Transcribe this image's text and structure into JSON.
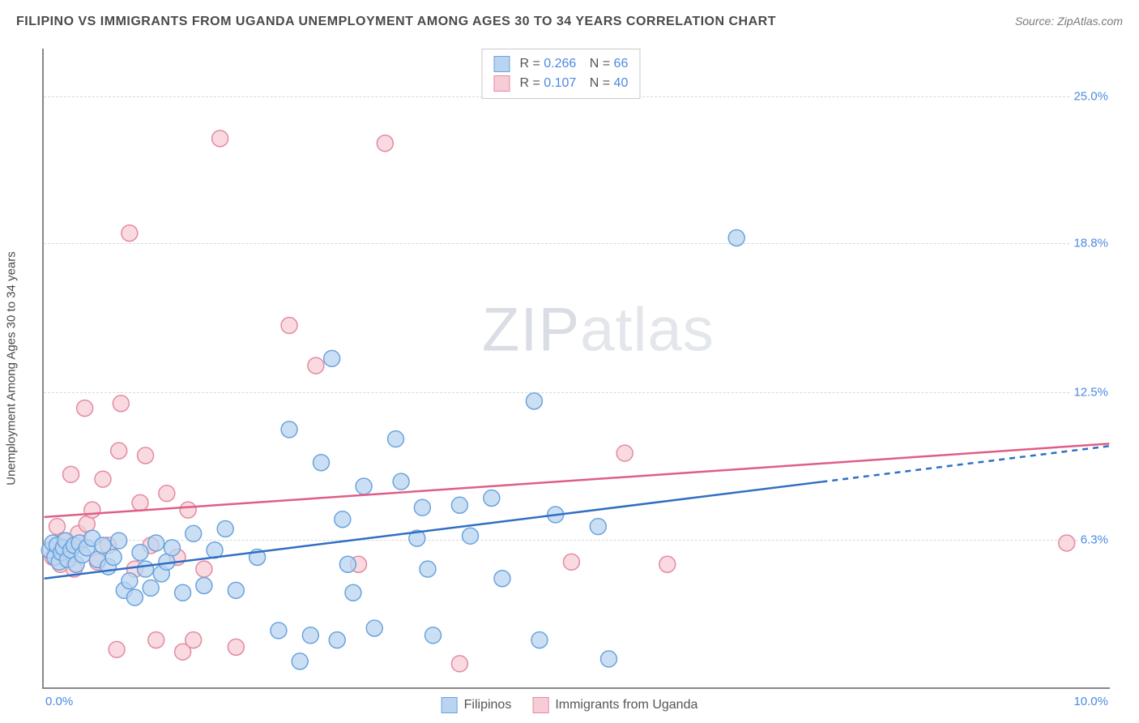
{
  "title": "FILIPINO VS IMMIGRANTS FROM UGANDA UNEMPLOYMENT AMONG AGES 30 TO 34 YEARS CORRELATION CHART",
  "source": "Source: ZipAtlas.com",
  "watermark_a": "ZIP",
  "watermark_b": "atlas",
  "chart": {
    "type": "scatter",
    "ylabel": "Unemployment Among Ages 30 to 34 years",
    "xlim": [
      0,
      10
    ],
    "ylim": [
      0,
      27
    ],
    "y_ticks": [
      6.3,
      12.5,
      18.8,
      25.0
    ],
    "y_tick_labels": [
      "6.3%",
      "12.5%",
      "18.8%",
      "25.0%"
    ],
    "x_tick_left": "0.0%",
    "x_tick_right": "10.0%",
    "grid_color": "#d8d8d8",
    "axis_color": "#888888",
    "background_color": "#ffffff",
    "series": [
      {
        "name": "Filipinos",
        "fill": "#b9d4f0",
        "stroke": "#6aa3de",
        "line_color": "#2f6fc4",
        "r_value": "0.266",
        "n_value": "66",
        "regression": {
          "x1": 0.0,
          "y1": 4.6,
          "x2": 7.3,
          "y2": 8.7,
          "x3": 10.0,
          "y3": 10.2,
          "dash_after": 7.3
        },
        "points": [
          [
            0.05,
            5.8
          ],
          [
            0.08,
            6.1
          ],
          [
            0.1,
            5.5
          ],
          [
            0.12,
            6.0
          ],
          [
            0.14,
            5.3
          ],
          [
            0.16,
            5.7
          ],
          [
            0.18,
            5.9
          ],
          [
            0.2,
            6.2
          ],
          [
            0.22,
            5.4
          ],
          [
            0.25,
            5.8
          ],
          [
            0.28,
            6.0
          ],
          [
            0.3,
            5.2
          ],
          [
            0.33,
            6.1
          ],
          [
            0.36,
            5.6
          ],
          [
            0.4,
            5.9
          ],
          [
            0.45,
            6.3
          ],
          [
            0.5,
            5.4
          ],
          [
            0.55,
            6.0
          ],
          [
            0.6,
            5.1
          ],
          [
            0.65,
            5.5
          ],
          [
            0.7,
            6.2
          ],
          [
            0.75,
            4.1
          ],
          [
            0.8,
            4.5
          ],
          [
            0.85,
            3.8
          ],
          [
            0.9,
            5.7
          ],
          [
            0.95,
            5.0
          ],
          [
            1.0,
            4.2
          ],
          [
            1.05,
            6.1
          ],
          [
            1.1,
            4.8
          ],
          [
            1.15,
            5.3
          ],
          [
            1.2,
            5.9
          ],
          [
            1.3,
            4.0
          ],
          [
            1.4,
            6.5
          ],
          [
            1.5,
            4.3
          ],
          [
            1.6,
            5.8
          ],
          [
            1.7,
            6.7
          ],
          [
            1.8,
            4.1
          ],
          [
            2.0,
            5.5
          ],
          [
            2.2,
            2.4
          ],
          [
            2.3,
            10.9
          ],
          [
            2.4,
            1.1
          ],
          [
            2.5,
            2.2
          ],
          [
            2.6,
            9.5
          ],
          [
            2.7,
            13.9
          ],
          [
            2.75,
            2.0
          ],
          [
            2.8,
            7.1
          ],
          [
            2.85,
            5.2
          ],
          [
            2.9,
            4.0
          ],
          [
            3.0,
            8.5
          ],
          [
            3.1,
            2.5
          ],
          [
            3.3,
            10.5
          ],
          [
            3.35,
            8.7
          ],
          [
            3.5,
            6.3
          ],
          [
            3.55,
            7.6
          ],
          [
            3.6,
            5.0
          ],
          [
            3.65,
            2.2
          ],
          [
            3.9,
            7.7
          ],
          [
            4.0,
            6.4
          ],
          [
            4.2,
            8.0
          ],
          [
            4.3,
            4.6
          ],
          [
            4.6,
            12.1
          ],
          [
            4.65,
            2.0
          ],
          [
            4.8,
            7.3
          ],
          [
            5.2,
            6.8
          ],
          [
            5.3,
            1.2
          ],
          [
            6.5,
            19.0
          ]
        ]
      },
      {
        "name": "Immigrants from Uganda",
        "fill": "#f6cdd6",
        "stroke": "#e48aa1",
        "line_color": "#df5e86",
        "r_value": "0.107",
        "n_value": "40",
        "regression": {
          "x1": 0.0,
          "y1": 7.2,
          "x2": 10.0,
          "y2": 10.3,
          "dash_after": null
        },
        "points": [
          [
            0.08,
            5.5
          ],
          [
            0.12,
            6.8
          ],
          [
            0.15,
            5.2
          ],
          [
            0.18,
            6.2
          ],
          [
            0.22,
            5.6
          ],
          [
            0.25,
            9.0
          ],
          [
            0.28,
            5.0
          ],
          [
            0.32,
            6.5
          ],
          [
            0.38,
            11.8
          ],
          [
            0.4,
            6.9
          ],
          [
            0.45,
            7.5
          ],
          [
            0.5,
            5.3
          ],
          [
            0.55,
            8.8
          ],
          [
            0.6,
            6.0
          ],
          [
            0.68,
            1.6
          ],
          [
            0.7,
            10.0
          ],
          [
            0.72,
            12.0
          ],
          [
            0.8,
            19.2
          ],
          [
            0.85,
            5.0
          ],
          [
            0.9,
            7.8
          ],
          [
            0.95,
            9.8
          ],
          [
            1.0,
            6.0
          ],
          [
            1.05,
            2.0
          ],
          [
            1.15,
            8.2
          ],
          [
            1.25,
            5.5
          ],
          [
            1.3,
            1.5
          ],
          [
            1.35,
            7.5
          ],
          [
            1.4,
            2.0
          ],
          [
            1.5,
            5.0
          ],
          [
            1.65,
            23.2
          ],
          [
            1.8,
            1.7
          ],
          [
            2.3,
            15.3
          ],
          [
            2.55,
            13.6
          ],
          [
            2.95,
            5.2
          ],
          [
            3.2,
            23.0
          ],
          [
            3.9,
            1.0
          ],
          [
            4.95,
            5.3
          ],
          [
            5.45,
            9.9
          ],
          [
            5.85,
            5.2
          ],
          [
            9.6,
            6.1
          ]
        ]
      }
    ]
  },
  "legend_labels": {
    "series1": "Filipinos",
    "series2": "Immigrants from Uganda"
  }
}
